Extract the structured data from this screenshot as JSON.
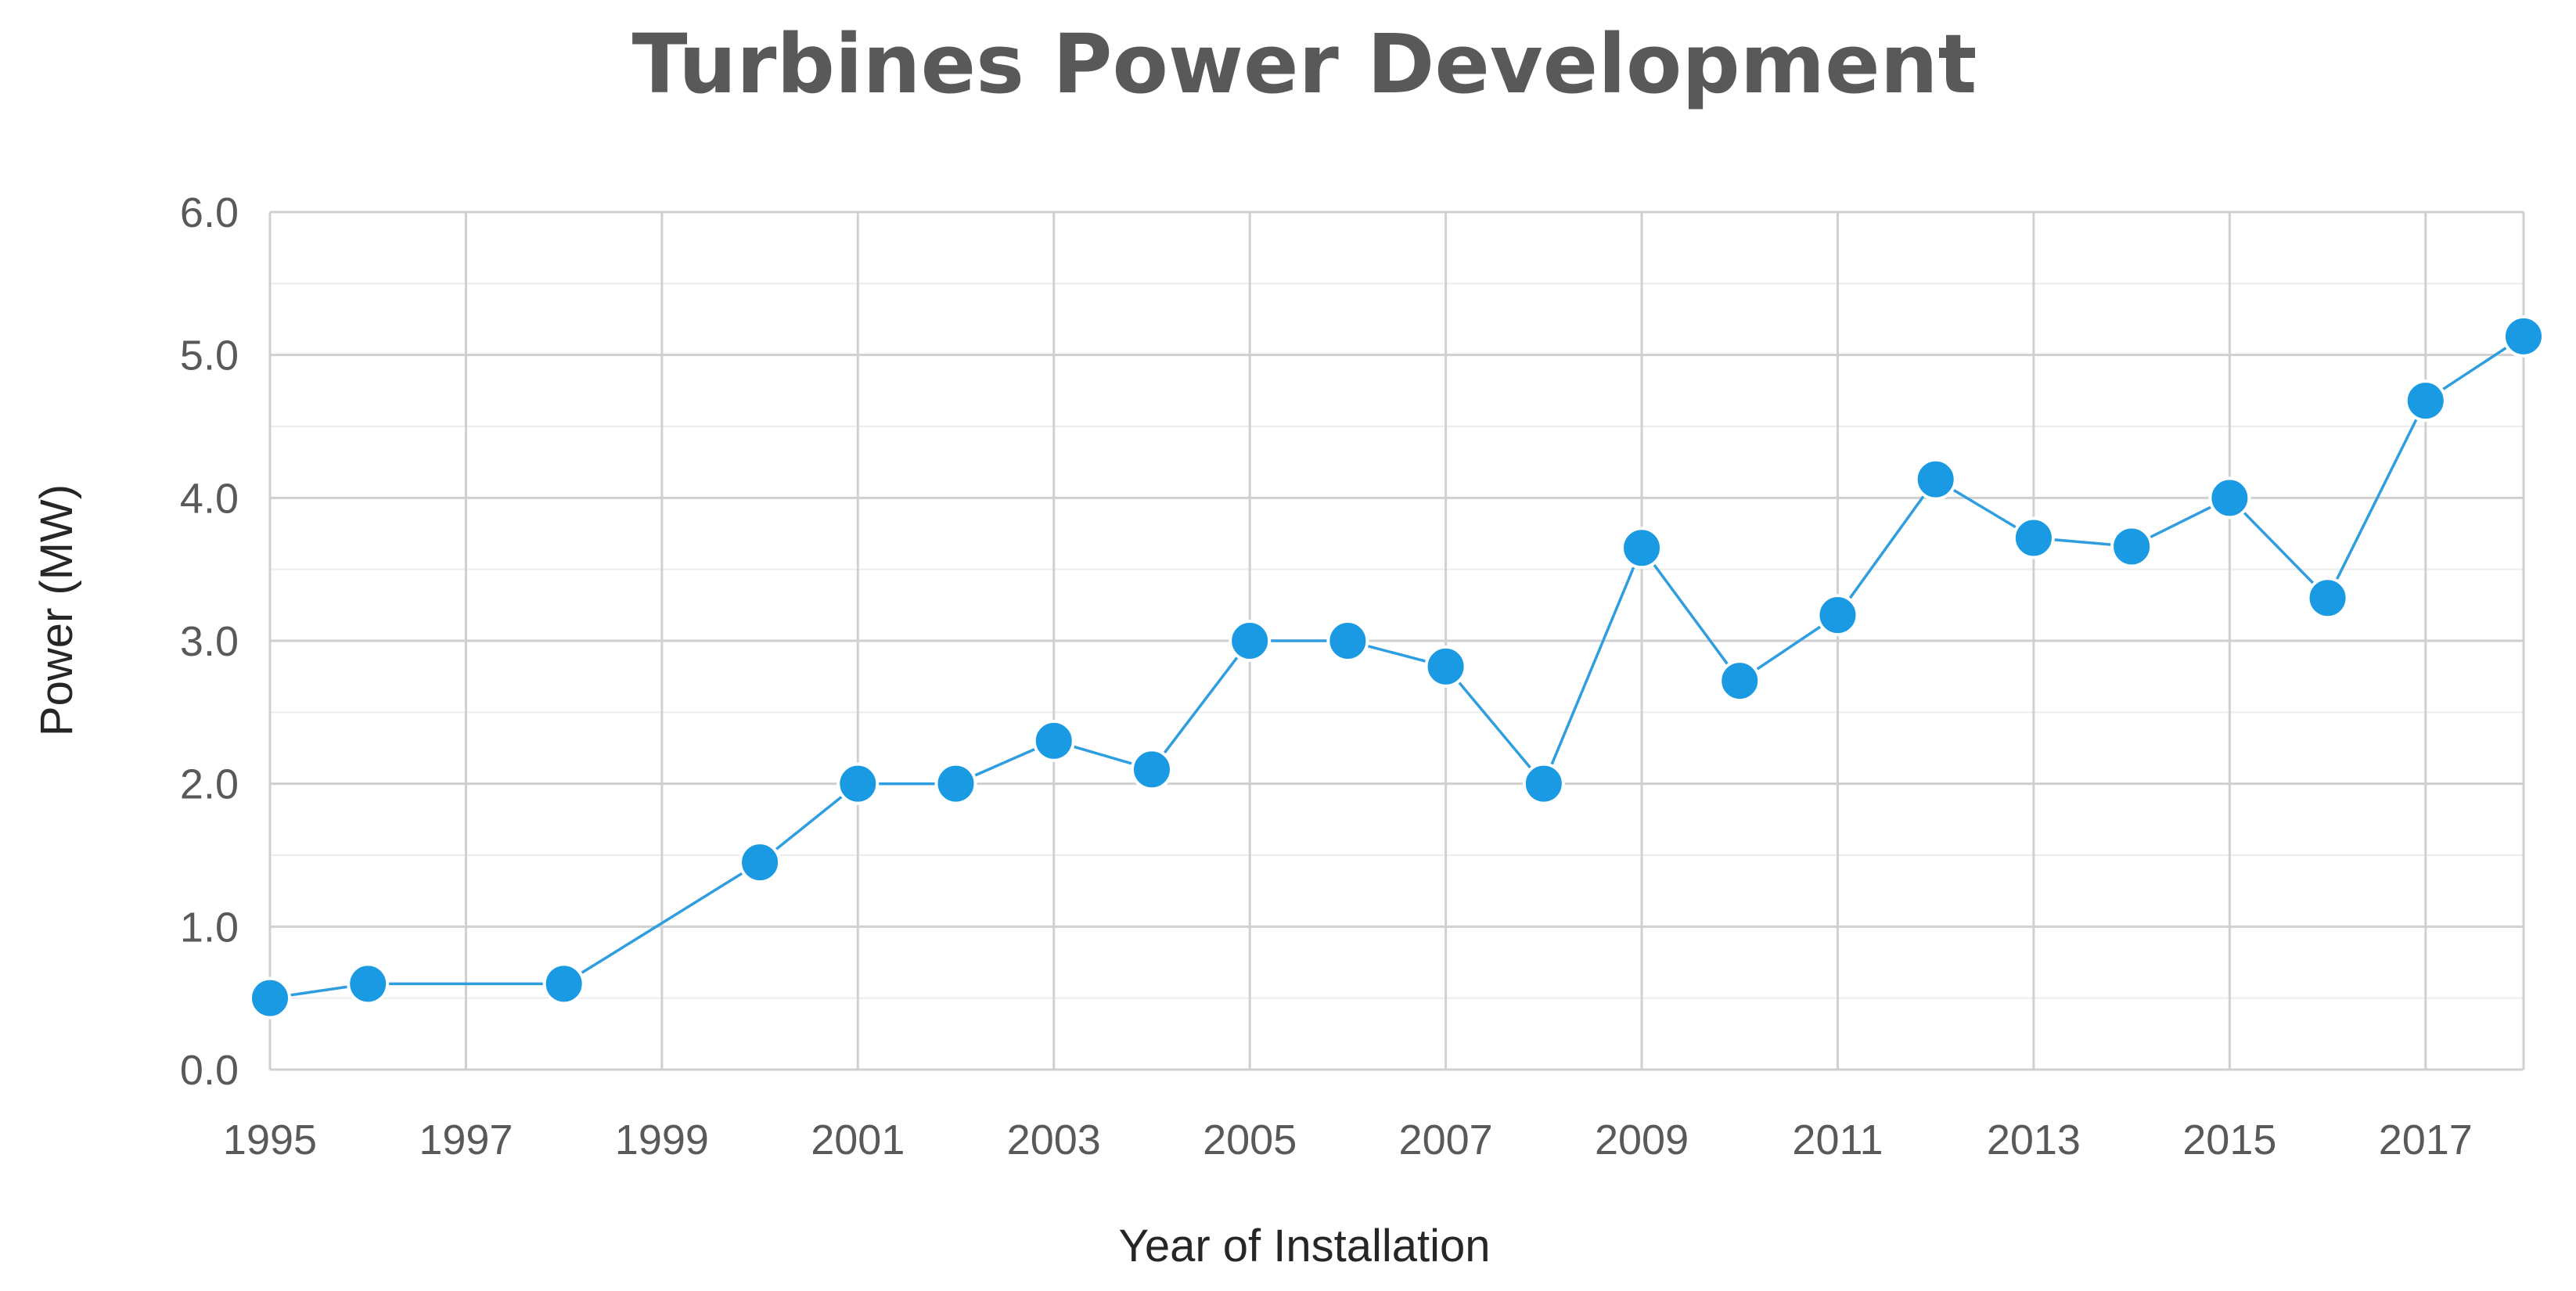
{
  "chart_data": {
    "type": "line",
    "title": "Turbines Power Development",
    "xlabel": "Year of Installation",
    "ylabel": "Power (MW)",
    "xlim": [
      1995,
      2018
    ],
    "ylim": [
      0,
      6
    ],
    "x_ticks": [
      1995,
      1997,
      1999,
      2001,
      2003,
      2005,
      2007,
      2009,
      2011,
      2013,
      2015,
      2017
    ],
    "x_tick_labels": [
      "1995",
      "1997",
      "1999",
      "2001",
      "2003",
      "2005",
      "2007",
      "2009",
      "2011",
      "2013",
      "2015",
      "2017"
    ],
    "y_ticks": [
      0,
      1,
      2,
      3,
      4,
      5,
      6
    ],
    "y_tick_labels": [
      "0.0",
      "1.0",
      "2.0",
      "3.0",
      "4.0",
      "5.0",
      "6.0"
    ],
    "grid": true,
    "legend": false,
    "series": [
      {
        "name": "Power",
        "color": "#1a9ae2",
        "x": [
          1995,
          1996,
          1998,
          2000,
          2001,
          2002,
          2003,
          2004,
          2005,
          2006,
          2007,
          2008,
          2009,
          2010,
          2011,
          2012,
          2013,
          2014,
          2015,
          2016,
          2017,
          2018
        ],
        "y": [
          0.5,
          0.6,
          0.6,
          1.45,
          2.0,
          2.0,
          2.3,
          2.1,
          3.0,
          3.0,
          2.82,
          2.0,
          3.65,
          2.72,
          3.18,
          4.13,
          3.72,
          3.66,
          4.0,
          3.3,
          4.68,
          5.13
        ]
      }
    ]
  }
}
